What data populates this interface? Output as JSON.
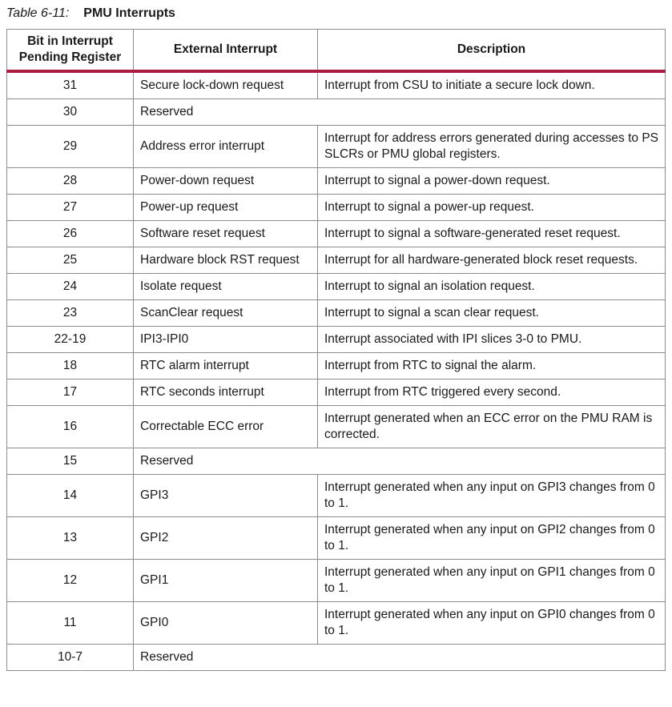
{
  "caption": {
    "label": "Table 6-11:",
    "title": "PMU Interrupts"
  },
  "colors": {
    "header_rule": "#a91d44",
    "border": "#8c8c8c",
    "text": "#1a1a1a",
    "background": "#ffffff"
  },
  "table": {
    "headers": [
      "Bit in Interrupt Pending Register",
      "External Interrupt",
      "Description"
    ],
    "rows": [
      {
        "bit": "31",
        "interrupt": "Secure lock-down request",
        "description": "Interrupt from CSU to initiate a secure lock down."
      },
      {
        "bit": "30",
        "interrupt": "Reserved",
        "description": null
      },
      {
        "bit": "29",
        "interrupt": "Address error interrupt",
        "description": "Interrupt for address errors generated during accesses to PS SLCRs or PMU global registers."
      },
      {
        "bit": "28",
        "interrupt": "Power-down request",
        "description": "Interrupt to signal a power-down request."
      },
      {
        "bit": "27",
        "interrupt": "Power-up request",
        "description": "Interrupt to signal a power-up request."
      },
      {
        "bit": "26",
        "interrupt": "Software reset request",
        "description": "Interrupt to signal a software-generated reset request."
      },
      {
        "bit": "25",
        "interrupt": "Hardware block RST request",
        "description": "Interrupt for all hardware-generated block reset requests."
      },
      {
        "bit": "24",
        "interrupt": "Isolate request",
        "description": "Interrupt to signal an isolation request."
      },
      {
        "bit": "23",
        "interrupt": "ScanClear request",
        "description": "Interrupt to signal a scan clear request."
      },
      {
        "bit": "22-19",
        "interrupt": "IPI3-IPI0",
        "description": "Interrupt associated with IPI slices 3-0 to PMU."
      },
      {
        "bit": "18",
        "interrupt": "RTC alarm interrupt",
        "description": "Interrupt from RTC to signal the alarm."
      },
      {
        "bit": "17",
        "interrupt": "RTC seconds interrupt",
        "description": "Interrupt from RTC triggered every second."
      },
      {
        "bit": "16",
        "interrupt": "Correctable ECC error",
        "description": "Interrupt generated when an ECC error on the PMU RAM is corrected."
      },
      {
        "bit": "15",
        "interrupt": "Reserved",
        "description": null
      },
      {
        "bit": "14",
        "interrupt": "GPI3",
        "description": "Interrupt generated when any input on GPI3 changes from 0 to 1."
      },
      {
        "bit": "13",
        "interrupt": "GPI2",
        "description": "Interrupt generated when any input on GPI2 changes from 0 to 1."
      },
      {
        "bit": "12",
        "interrupt": "GPI1",
        "description": "Interrupt generated when any input on GPI1 changes from 0 to 1."
      },
      {
        "bit": "11",
        "interrupt": "GPI0",
        "description": "Interrupt generated when any input on GPI0 changes from 0 to 1."
      },
      {
        "bit": "10-7",
        "interrupt": "Reserved",
        "description": null
      }
    ]
  }
}
